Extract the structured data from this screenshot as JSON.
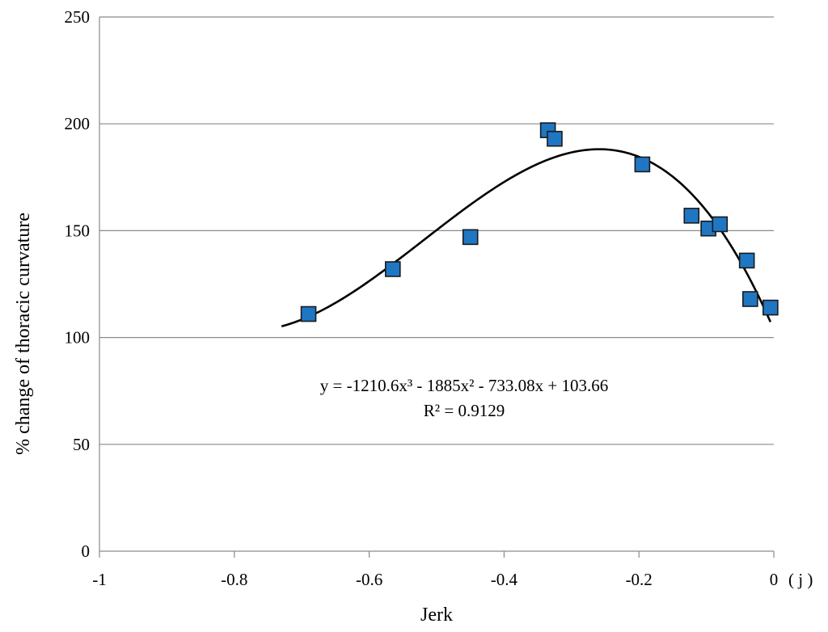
{
  "chart_data": {
    "type": "scatter",
    "xlabel": "Jerk",
    "ylabel": "% change of thoracic curvature",
    "x_unit": "( j )",
    "xlim": [
      -1,
      0
    ],
    "ylim": [
      0,
      250
    ],
    "x_ticks": [
      -1,
      -0.8,
      -0.6,
      -0.4,
      -0.2,
      0
    ],
    "x_tick_labels": [
      "-1",
      "-0.8",
      "-0.6",
      "-0.4",
      "-0.2",
      "0"
    ],
    "y_ticks": [
      0,
      50,
      100,
      150,
      200,
      250
    ],
    "y_tick_labels": [
      "0",
      "50",
      "100",
      "150",
      "200",
      "250"
    ],
    "grid": "horizontal",
    "legend": "none",
    "marker": "square",
    "marker_color": "#1f77c4",
    "series": [
      {
        "x": [
          -0.69,
          -0.565,
          -0.45,
          -0.335,
          -0.325,
          -0.195,
          -0.122,
          -0.097,
          -0.08,
          -0.04,
          -0.035,
          -0.005
        ],
        "y": [
          111,
          132,
          147,
          197,
          193,
          181,
          157,
          151,
          153,
          136,
          118,
          114
        ]
      }
    ],
    "trendline": {
      "type": "polynomial",
      "order": 3,
      "coefficients": [
        -1210.6,
        -1885,
        -733.08,
        103.66
      ],
      "x_range": [
        -0.73,
        -0.005
      ],
      "color": "#000000"
    },
    "annotations": {
      "equation": "y = -1210.6x³ - 1885x² - 733.08x + 103.66",
      "r_squared": "R² = 0.9129"
    }
  }
}
